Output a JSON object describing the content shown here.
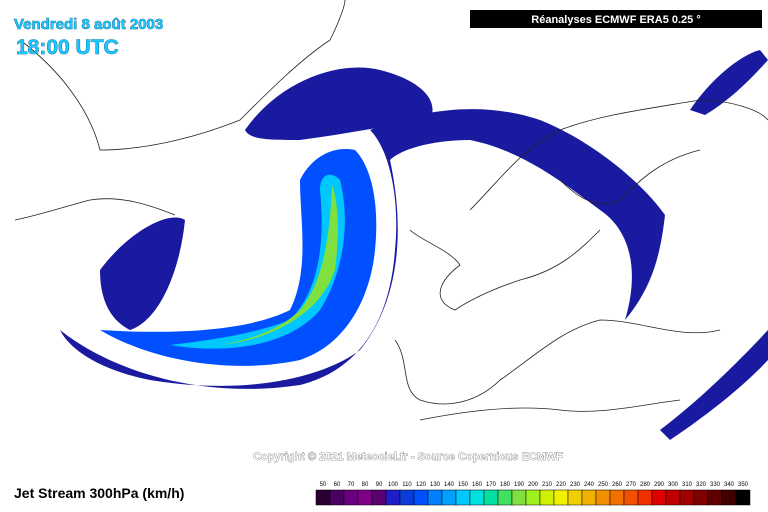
{
  "header": {
    "date": "Vendredi 8 août 2003",
    "time": "18:00 UTC",
    "source_box": "Réanalyses ECMWF ERA5 0.25 °"
  },
  "copyright": "Copyright © 2021 Meteociel.fr - Source Copernicus ECMWF",
  "legend": {
    "title": "Jet Stream 300hPa (km/h)",
    "ticks": [
      50,
      60,
      70,
      80,
      90,
      100,
      110,
      120,
      130,
      140,
      150,
      160,
      170,
      180,
      190,
      200,
      210,
      220,
      230,
      240,
      250,
      260,
      270,
      280,
      290,
      300,
      310,
      320,
      330,
      340,
      350
    ],
    "colors": [
      "#2a0030",
      "#4a0060",
      "#6a0080",
      "#80008a",
      "#5a0070",
      "#1e1ec8",
      "#0a3cdc",
      "#0050ff",
      "#0080ff",
      "#00a0ff",
      "#00c8ff",
      "#00e0e0",
      "#00e0a0",
      "#40e060",
      "#80e040",
      "#a0f020",
      "#d0f000",
      "#f0f000",
      "#f0d000",
      "#f0b000",
      "#f09000",
      "#f07000",
      "#f05000",
      "#f03000",
      "#e00000",
      "#c00000",
      "#a00000",
      "#800000",
      "#600000",
      "#400000",
      "#000000"
    ]
  }
}
